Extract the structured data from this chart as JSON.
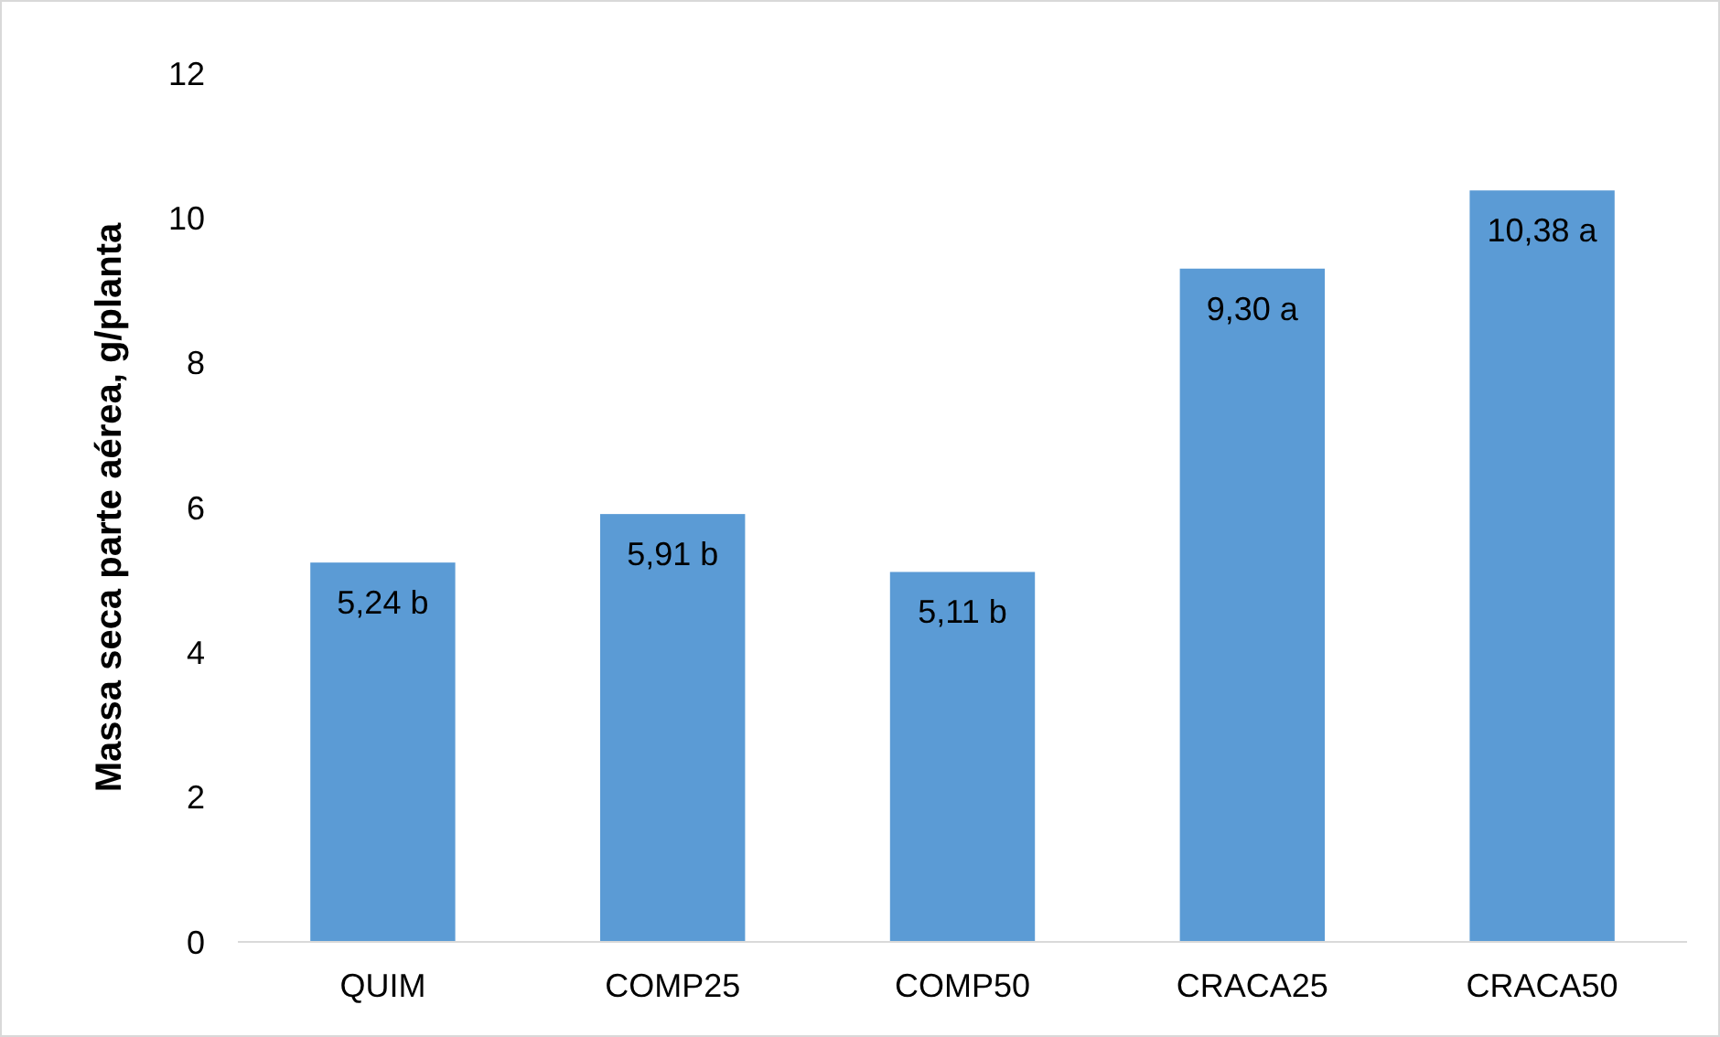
{
  "chart_data": {
    "type": "bar",
    "ylabel": "Massa seca parte aérea, g/planta",
    "categories": [
      "QUIM",
      "COMP25",
      "COMP50",
      "CRACA25",
      "CRACA50"
    ],
    "values": [
      5.24,
      5.91,
      5.11,
      9.3,
      10.38
    ],
    "value_labels": [
      "5,24 b",
      "5,91 b",
      "5,11 b",
      "9,30 a",
      "10,38 a"
    ],
    "color": "#5b9bd5",
    "ylim": [
      0,
      12
    ],
    "yticks": [
      0,
      2,
      4,
      6,
      8,
      10,
      12
    ],
    "grid": false
  }
}
